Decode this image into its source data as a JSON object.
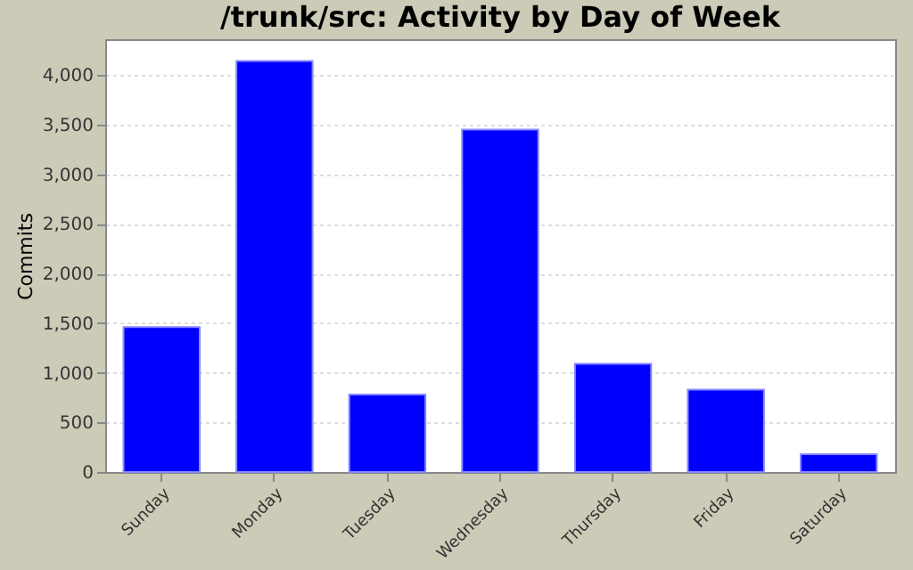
{
  "chart_data": {
    "type": "bar",
    "title": "/trunk/src: Activity by Day of Week",
    "ylabel": "Commits",
    "categories": [
      "Sunday",
      "Monday",
      "Tuesday",
      "Wednesday",
      "Thursday",
      "Friday",
      "Saturday"
    ],
    "values": [
      1460,
      4140,
      780,
      3450,
      1090,
      830,
      180
    ],
    "color": "#0000ff",
    "ylim": [
      0,
      4360
    ],
    "yticks": [
      {
        "value": 0,
        "label": "0"
      },
      {
        "value": 500,
        "label": "500"
      },
      {
        "value": 1000,
        "label": "1,000"
      },
      {
        "value": 1500,
        "label": "1,500"
      },
      {
        "value": 2000,
        "label": "2,000"
      },
      {
        "value": 2500,
        "label": "2,500"
      },
      {
        "value": 3000,
        "label": "3,000"
      },
      {
        "value": 3500,
        "label": "3,500"
      },
      {
        "value": 4000,
        "label": "4,000"
      }
    ],
    "grid": "y"
  }
}
